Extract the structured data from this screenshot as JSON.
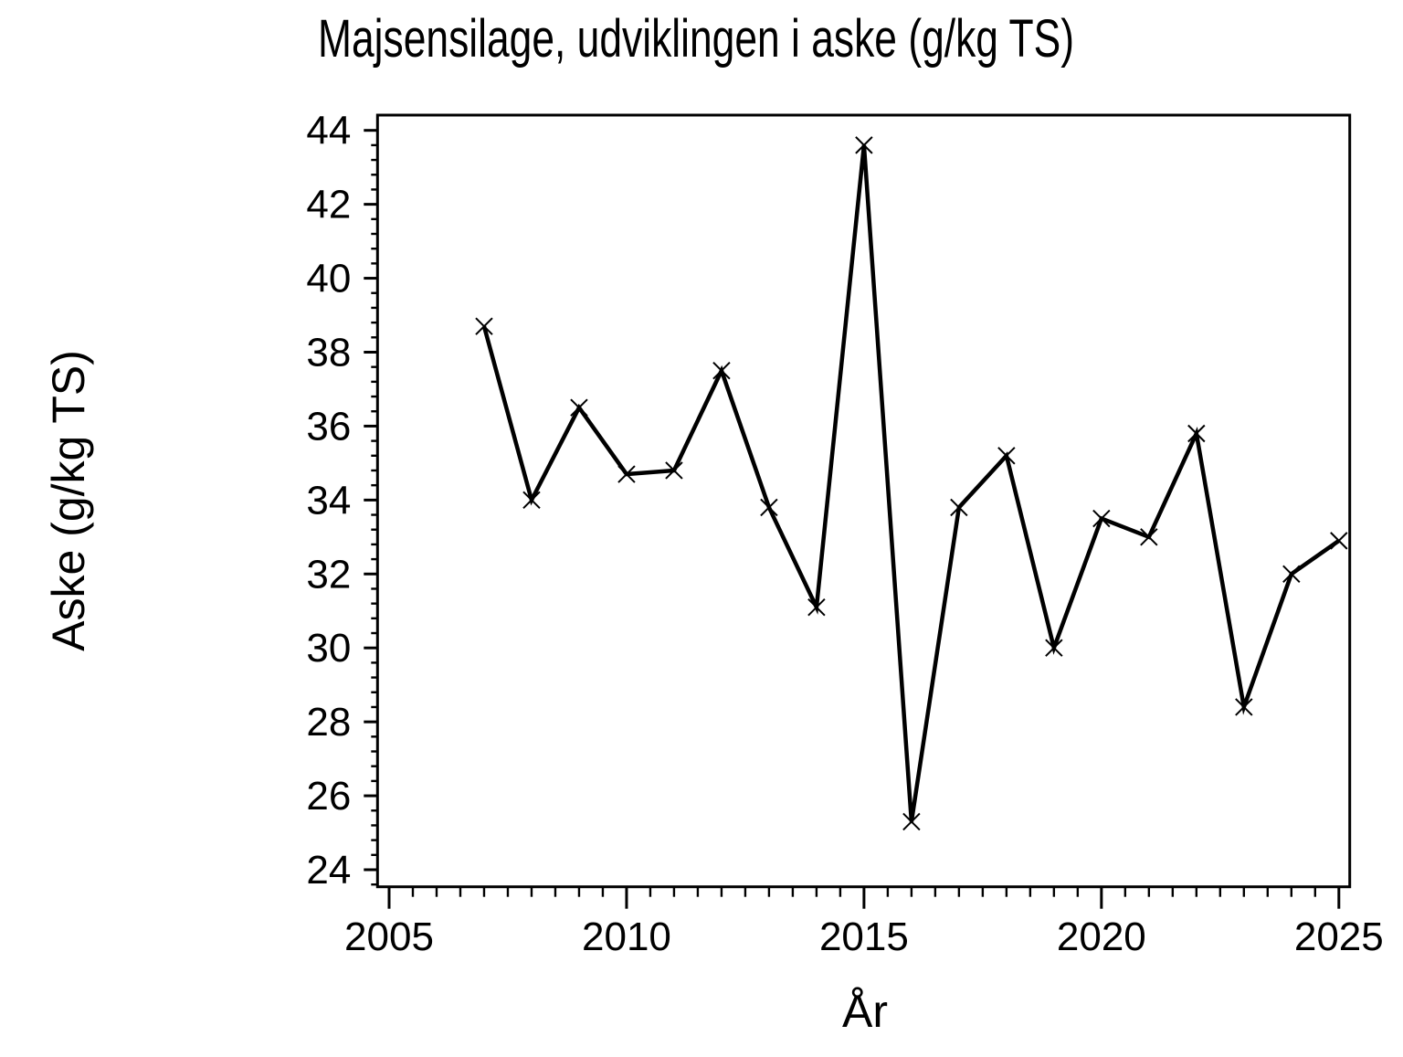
{
  "page": {
    "background": "#ffffff",
    "foreground": "#000000"
  },
  "chart_data": {
    "type": "line",
    "title": "Majsensilage, udviklingen i aske (g/kg TS)",
    "xlabel": "År",
    "ylabel": "Aske (g/kg TS)",
    "series": [
      {
        "name": "Aske (g/kg TS)",
        "x": [
          2007,
          2008,
          2009,
          2010,
          2011,
          2012,
          2013,
          2014,
          2015,
          2016,
          2017,
          2018,
          2019,
          2020,
          2021,
          2022,
          2023,
          2024,
          2025
        ],
        "y": [
          38.7,
          34.0,
          36.5,
          34.7,
          34.8,
          37.5,
          33.8,
          31.1,
          43.6,
          25.3,
          33.8,
          35.2,
          30.0,
          33.5,
          33.0,
          35.8,
          28.4,
          32.0,
          32.9
        ],
        "marker": "x",
        "color": "#000000"
      }
    ],
    "x_axis": {
      "min": 2005,
      "max": 2025,
      "major_ticks": [
        2005,
        2010,
        2015,
        2020,
        2025
      ],
      "minor_step": 0.5
    },
    "y_axis": {
      "min": 24,
      "max": 44,
      "major_ticks": [
        24,
        26,
        28,
        30,
        32,
        34,
        36,
        38,
        40,
        42,
        44
      ],
      "minor_step": 0.4
    },
    "grid": false,
    "legend": "none",
    "frame": true
  }
}
